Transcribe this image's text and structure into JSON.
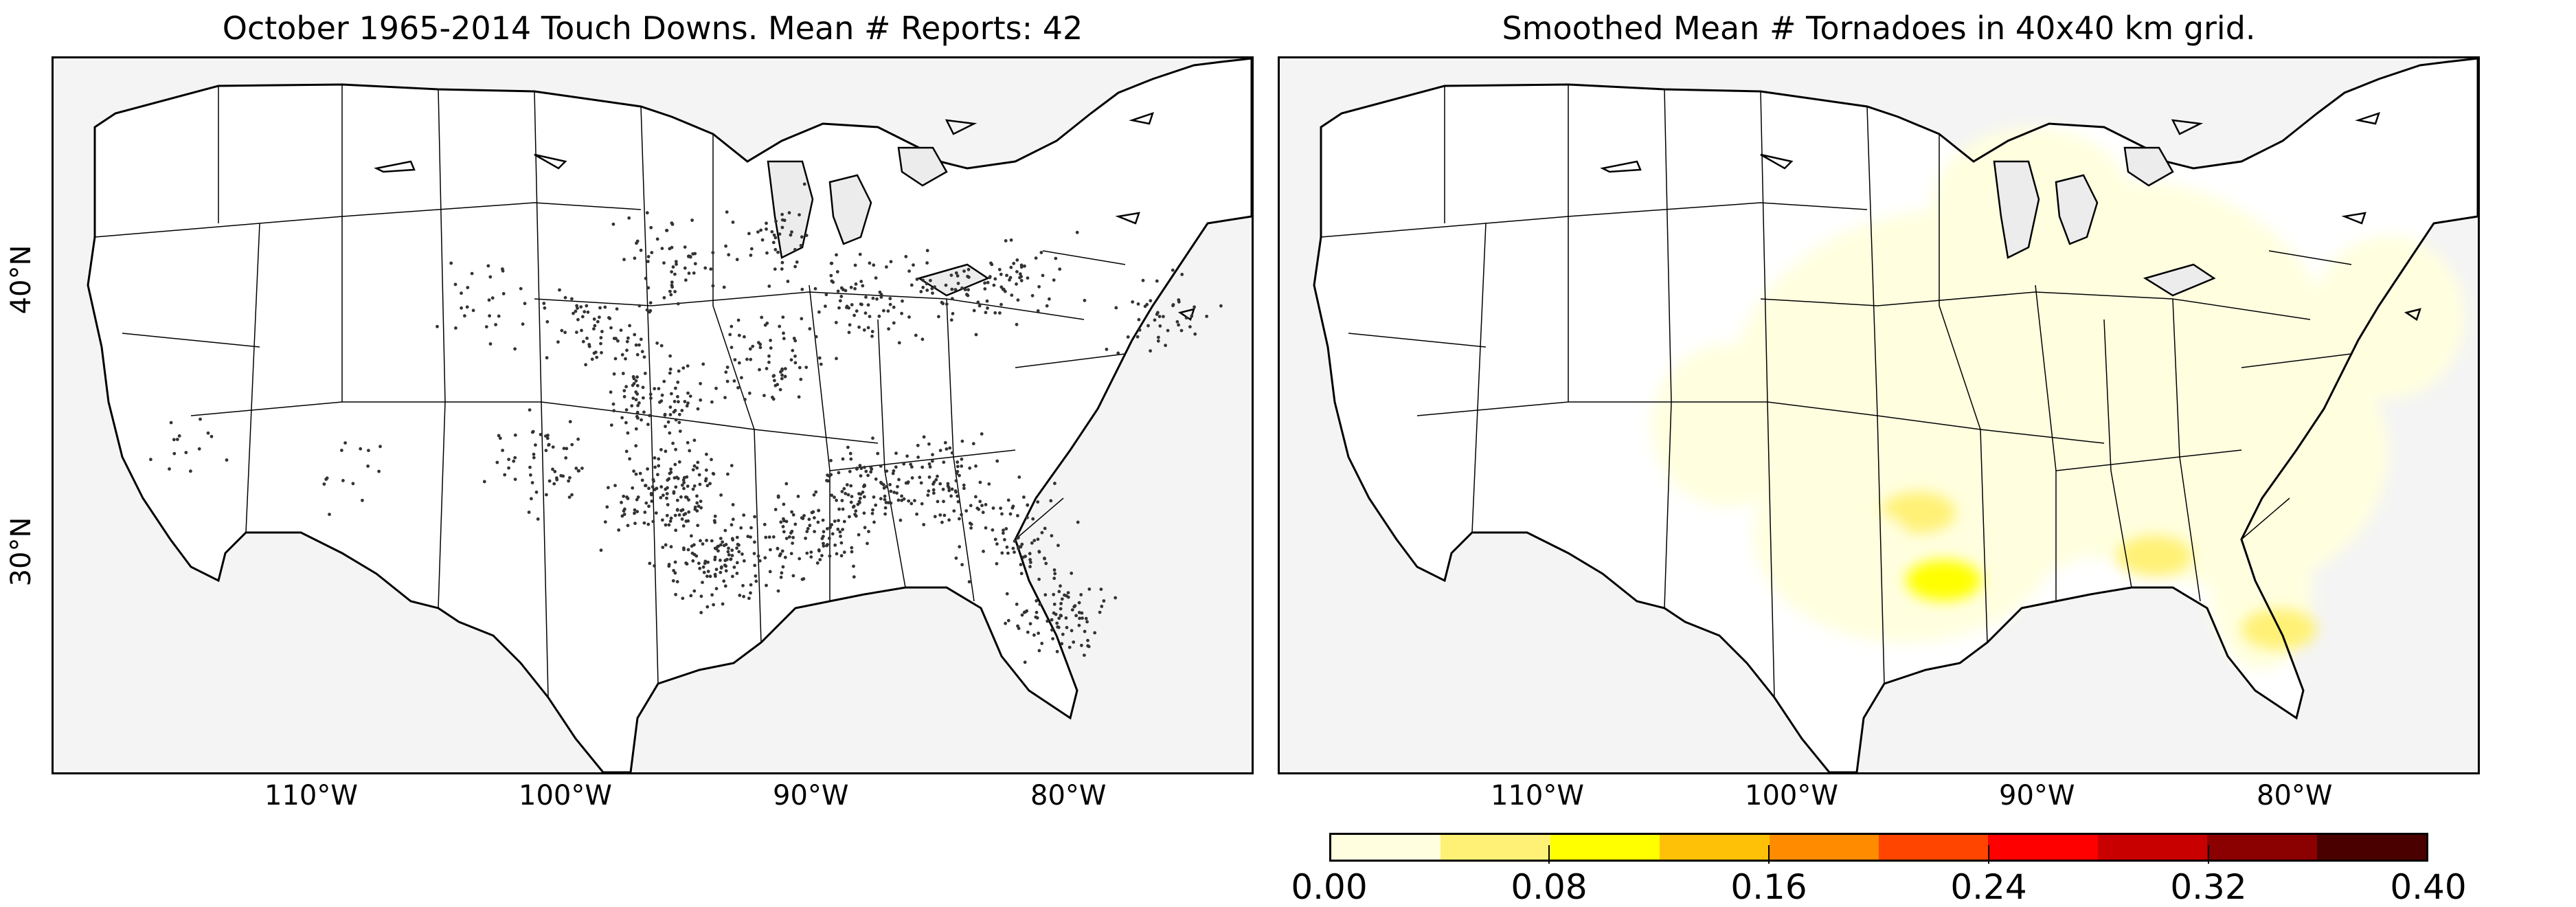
{
  "charts": {
    "left": {
      "title": "October 1965-2014 Touch Downs. Mean # Reports: 42"
    },
    "right": {
      "title": "Smoothed Mean # Tornadoes in 40x40 km grid."
    }
  },
  "axes": {
    "x_ticks": [
      "110°W",
      "100°W",
      "90°W",
      "80°W"
    ],
    "y_ticks": [
      "40°N",
      "30°N"
    ]
  },
  "colorbar": {
    "colors": [
      "#ffffe0",
      "#fff176",
      "#ffff00",
      "#ffc107",
      "#ff8c00",
      "#ff4500",
      "#ff0000",
      "#c80000",
      "#8b0000",
      "#4b0000"
    ],
    "tick_labels": [
      "0.00",
      "0.08",
      "0.16",
      "0.24",
      "0.32",
      "0.40"
    ]
  },
  "chart_data": [
    {
      "type": "scatter",
      "title": "October 1965-2014 Touch Downs. Mean # Reports: 42",
      "x_ticks": [
        "110°W",
        "100°W",
        "90°W",
        "80°W"
      ],
      "y_ticks": [
        "40°N",
        "30°N"
      ],
      "map_background": "#f4f4f4",
      "point_color": "#333333",
      "clusters": [
        {
          "lon": -97.5,
          "lat": 32.5,
          "weight": 10
        },
        {
          "lon": -95.5,
          "lat": 30.0,
          "weight": 9
        },
        {
          "lon": -92.0,
          "lat": 31.0,
          "weight": 7
        },
        {
          "lon": -89.5,
          "lat": 32.5,
          "weight": 7
        },
        {
          "lon": -86.5,
          "lat": 33.0,
          "weight": 6
        },
        {
          "lon": -84.0,
          "lat": 31.0,
          "weight": 5
        },
        {
          "lon": -82.0,
          "lat": 28.0,
          "weight": 6
        },
        {
          "lon": -98.0,
          "lat": 36.0,
          "weight": 6
        },
        {
          "lon": -100.0,
          "lat": 38.5,
          "weight": 5
        },
        {
          "lon": -97.5,
          "lat": 41.0,
          "weight": 4
        },
        {
          "lon": -93.5,
          "lat": 37.5,
          "weight": 5
        },
        {
          "lon": -89.5,
          "lat": 39.5,
          "weight": 5
        },
        {
          "lon": -86.0,
          "lat": 40.0,
          "weight": 4
        },
        {
          "lon": -93.0,
          "lat": 42.0,
          "weight": 3
        },
        {
          "lon": -83.5,
          "lat": 40.5,
          "weight": 3
        },
        {
          "lon": -78.0,
          "lat": 39.0,
          "weight": 3
        },
        {
          "lon": -102.5,
          "lat": 33.5,
          "weight": 4
        },
        {
          "lon": -104.5,
          "lat": 39.5,
          "weight": 2
        },
        {
          "lon": -110.0,
          "lat": 33.5,
          "weight": 1
        },
        {
          "lon": -116.0,
          "lat": 34.5,
          "weight": 1
        }
      ]
    },
    {
      "type": "heatmap",
      "title": "Smoothed Mean # Tornadoes in 40x40 km grid.",
      "x_ticks": [
        "110°W",
        "100°W",
        "90°W",
        "80°W"
      ],
      "y_ticks": [
        "40°N",
        "30°N"
      ],
      "color_range": [
        0.0,
        0.4
      ],
      "colorbar_ticks": [
        0.0,
        0.08,
        0.16,
        0.24,
        0.32,
        0.4
      ],
      "hotspots": [
        {
          "lon": -95.5,
          "lat": 29.3,
          "value": 0.1
        },
        {
          "lon": -96.5,
          "lat": 31.8,
          "value": 0.07
        },
        {
          "lon": -87.2,
          "lat": 30.2,
          "value": 0.06
        },
        {
          "lon": -98.5,
          "lat": 31.0,
          "value": 0.04
        },
        {
          "lon": -82.3,
          "lat": 27.5,
          "value": 0.05
        }
      ],
      "low_region_value": 0.02
    }
  ]
}
